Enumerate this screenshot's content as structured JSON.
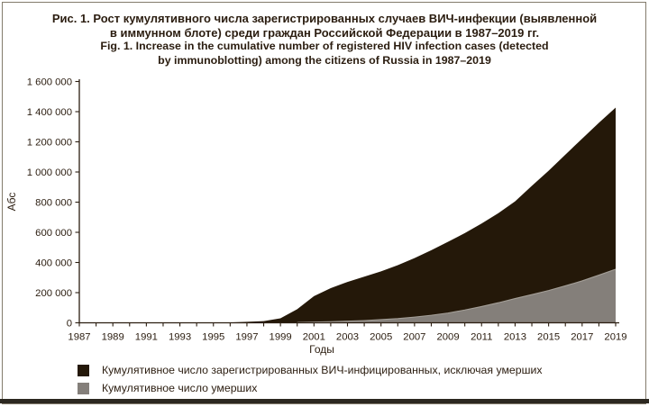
{
  "figure": {
    "title_lines": [
      "Рис. 1. Рост кумулятивного числа зарегистрированных случаев ВИЧ-инфекции (выявленной",
      "в иммунном блоте) среди граждан Российской Федерации в 1987–2019 гг.",
      "Fig. 1. Increase in the cumulative number of registered HIV infection cases (detected",
      "by immunoblotting) among the citizens of Russia in 1987–2019"
    ]
  },
  "chart_data": {
    "type": "area",
    "stacked": true,
    "title": "Рост кумулятивного числа зарегистрированных случаев ВИЧ-инфекции среди граждан РФ в 1987–2019 гг.",
    "xlabel": "Годы",
    "ylabel": "Абс",
    "ylim": [
      0,
      1600000
    ],
    "ytick_step": 200000,
    "grid": false,
    "legend_position": "bottom-left",
    "x": [
      1987,
      1988,
      1989,
      1990,
      1991,
      1992,
      1993,
      1994,
      1995,
      1996,
      1997,
      1998,
      1999,
      2000,
      2001,
      2002,
      2003,
      2004,
      2005,
      2006,
      2007,
      2008,
      2009,
      2010,
      2011,
      2012,
      2013,
      2014,
      2015,
      2016,
      2017,
      2018,
      2019
    ],
    "series": [
      {
        "name": "Кумулятивное число умерших",
        "color": "#847f7a",
        "values": [
          0,
          0,
          100,
          150,
          200,
          250,
          300,
          350,
          400,
          500,
          800,
          1200,
          2000,
          3000,
          5000,
          7000,
          11000,
          15000,
          21000,
          28000,
          38000,
          50000,
          65000,
          85000,
          108000,
          133000,
          161000,
          187000,
          214000,
          245000,
          278000,
          316000,
          355000
        ]
      },
      {
        "name": "Кумулятивное число зарегистрированных ВИЧ-инфицированных, исключая умерших",
        "color": "#241809",
        "values": [
          25,
          50,
          300,
          450,
          550,
          600,
          650,
          700,
          750,
          2100,
          6200,
          9800,
          28000,
          87000,
          172000,
          223000,
          260000,
          291000,
          320000,
          354000,
          391000,
          431000,
          472000,
          510000,
          550000,
          594000,
          644000,
          721000,
          794000,
          870000,
          943000,
          1010000,
          1072000
        ]
      }
    ],
    "ytick_labels": [
      "0",
      "200 000",
      "400 000",
      "600 000",
      "800 000",
      "1 000 000",
      "1 200 000",
      "1 400 000",
      "1 600 000"
    ],
    "xtick_labels": [
      "1987",
      "1989",
      "1991",
      "1993",
      "1995",
      "1997",
      "1999",
      "2001",
      "2003",
      "2005",
      "2007",
      "2009",
      "2011",
      "2013",
      "2015",
      "2017",
      "2019"
    ]
  },
  "colors": {
    "axis": "#2b1d10",
    "boundary_line": "#a49f98",
    "frame": "#837b6c",
    "bottom_rule": "#2c2820"
  }
}
